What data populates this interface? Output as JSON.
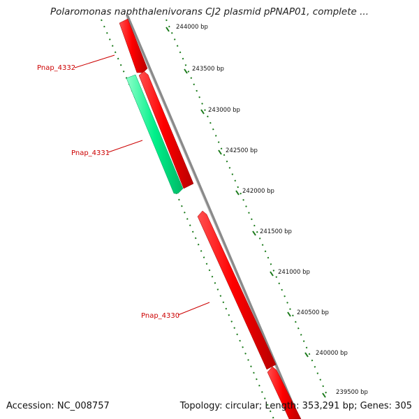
{
  "title": "Polaromonas naphthalenivorans CJ2 plasmid pPNAP01, complete ...",
  "footer": {
    "accession": "Accession: NC_008757",
    "topology": "Topology: circular; Length: 353,291 bp; Genes: 305"
  },
  "colors": {
    "forward_gene": "#ff0000",
    "reverse_gene": "#00ee88",
    "backbone": "#888888",
    "ticks": "#1a7a1a",
    "label": "#cc0000"
  },
  "ruler": [
    {
      "label": "244000 bp"
    },
    {
      "label": "243500 bp"
    },
    {
      "label": "243000 bp"
    },
    {
      "label": "242500 bp"
    },
    {
      "label": "242000 bp"
    },
    {
      "label": "241500 bp"
    },
    {
      "label": "241000 bp"
    },
    {
      "label": "240500 bp"
    },
    {
      "label": "240000 bp"
    },
    {
      "label": "239500 bp"
    }
  ],
  "genes": [
    {
      "name": "Pnap_4332",
      "strand": "forward"
    },
    {
      "name": "Pnap_4331",
      "strand": "reverse"
    },
    {
      "name": "Pnap_4330",
      "strand": "forward"
    }
  ]
}
